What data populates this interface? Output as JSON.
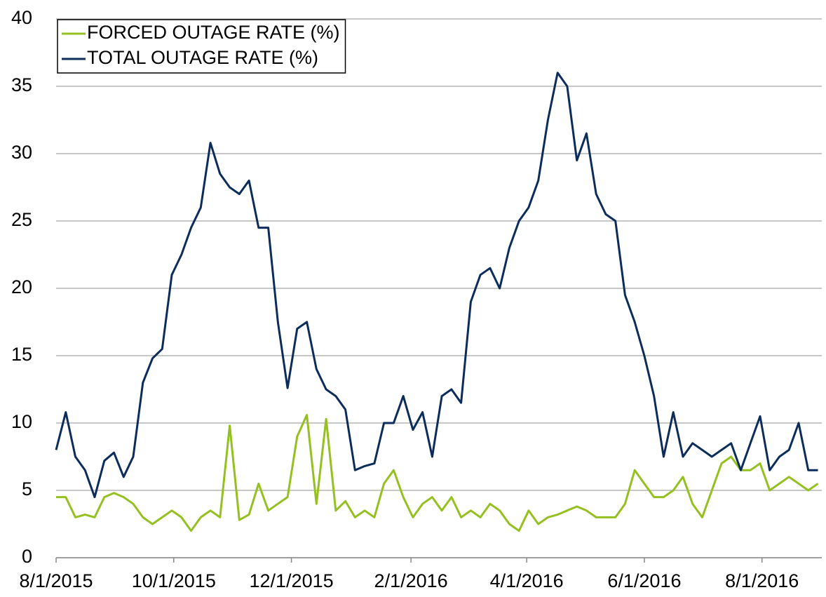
{
  "chart_data": {
    "type": "line",
    "x": [
      "2015-08-01",
      "2015-08-06",
      "2015-08-11",
      "2015-08-16",
      "2015-08-21",
      "2015-08-26",
      "2015-08-31",
      "2015-09-05",
      "2015-09-10",
      "2015-09-15",
      "2015-09-20",
      "2015-09-25",
      "2015-09-30",
      "2015-10-05",
      "2015-10-10",
      "2015-10-15",
      "2015-10-20",
      "2015-10-25",
      "2015-10-30",
      "2015-11-04",
      "2015-11-09",
      "2015-11-14",
      "2015-11-19",
      "2015-11-24",
      "2015-11-29",
      "2015-12-04",
      "2015-12-09",
      "2015-12-14",
      "2015-12-19",
      "2015-12-24",
      "2015-12-29",
      "2016-01-03",
      "2016-01-08",
      "2016-01-13",
      "2016-01-18",
      "2016-01-23",
      "2016-01-28",
      "2016-02-02",
      "2016-02-07",
      "2016-02-12",
      "2016-02-17",
      "2016-02-22",
      "2016-02-27",
      "2016-03-03",
      "2016-03-08",
      "2016-03-13",
      "2016-03-18",
      "2016-03-23",
      "2016-03-28",
      "2016-04-02",
      "2016-04-07",
      "2016-04-12",
      "2016-04-17",
      "2016-04-22",
      "2016-04-27",
      "2016-05-02",
      "2016-05-07",
      "2016-05-12",
      "2016-05-17",
      "2016-05-22",
      "2016-05-27",
      "2016-06-01",
      "2016-06-06",
      "2016-06-11",
      "2016-06-16",
      "2016-06-21",
      "2016-06-26",
      "2016-07-01",
      "2016-07-06",
      "2016-07-11",
      "2016-07-16",
      "2016-07-21",
      "2016-07-26",
      "2016-07-31",
      "2016-08-05",
      "2016-08-10",
      "2016-08-15",
      "2016-08-20",
      "2016-08-25",
      "2016-08-30"
    ],
    "series": [
      {
        "name": "FORCED OUTAGE RATE (%)",
        "color": "#94c11f",
        "values": [
          4.5,
          4.5,
          3.0,
          3.2,
          3.0,
          4.5,
          4.8,
          4.5,
          4.0,
          3.0,
          2.5,
          3.0,
          3.5,
          3.0,
          2.0,
          3.0,
          3.5,
          3.0,
          9.8,
          2.8,
          3.2,
          5.5,
          3.5,
          4.0,
          4.5,
          9.0,
          10.6,
          4.0,
          10.3,
          3.5,
          4.2,
          3.0,
          3.5,
          3.0,
          5.5,
          6.5,
          4.5,
          3.0,
          4.0,
          4.5,
          3.5,
          4.5,
          3.0,
          3.5,
          3.0,
          4.0,
          3.5,
          2.5,
          2.0,
          3.5,
          2.5,
          3.0,
          3.2,
          3.5,
          3.8,
          3.5,
          3.0,
          3.0,
          3.0,
          4.0,
          6.5,
          5.5,
          4.5,
          4.5,
          5.0,
          6.0,
          4.0,
          3.0,
          5.0,
          7.0,
          7.5,
          6.5,
          6.5,
          7.0,
          5.0,
          5.5,
          6.0,
          5.5,
          5.0,
          5.5
        ]
      },
      {
        "name": "TOTAL OUTAGE RATE (%)",
        "color": "#0c2d5b",
        "values": [
          8.0,
          10.8,
          7.5,
          6.5,
          4.5,
          7.2,
          7.8,
          6.0,
          7.5,
          13.0,
          14.8,
          15.5,
          21.0,
          22.5,
          24.5,
          26.0,
          30.8,
          28.5,
          27.5,
          27.0,
          28.0,
          24.5,
          24.5,
          17.5,
          12.6,
          17.0,
          17.5,
          14.0,
          12.5,
          12.0,
          11.0,
          6.5,
          6.8,
          7.0,
          10.0,
          10.0,
          12.0,
          9.5,
          10.8,
          7.5,
          12.0,
          12.5,
          11.5,
          19.0,
          21.0,
          21.5,
          20.0,
          23.0,
          25.0,
          26.0,
          28.0,
          32.5,
          36.0,
          35.0,
          29.5,
          31.5,
          27.0,
          25.5,
          25.0,
          19.5,
          17.5,
          15.0,
          12.0,
          7.5,
          10.8,
          7.5,
          8.5,
          8.0,
          7.5,
          8.0,
          8.5,
          6.5,
          8.5,
          10.5,
          6.5,
          7.5,
          8.0,
          10.0,
          6.5,
          6.5
        ]
      }
    ],
    "xlim": [
      "2015-08-01",
      "2016-09-01"
    ],
    "xticks": [
      {
        "value": "2015-08-01",
        "label": "8/1/2015"
      },
      {
        "value": "2015-10-01",
        "label": "10/1/2015"
      },
      {
        "value": "2015-12-01",
        "label": "12/1/2015"
      },
      {
        "value": "2016-02-01",
        "label": "2/1/2016"
      },
      {
        "value": "2016-04-01",
        "label": "4/1/2016"
      },
      {
        "value": "2016-06-01",
        "label": "6/1/2016"
      },
      {
        "value": "2016-08-01",
        "label": "8/1/2016"
      }
    ],
    "ylim": [
      0,
      40
    ],
    "yticks": [
      0,
      5,
      10,
      15,
      20,
      25,
      30,
      35,
      40
    ],
    "grid": true,
    "legend": "upper-left"
  }
}
